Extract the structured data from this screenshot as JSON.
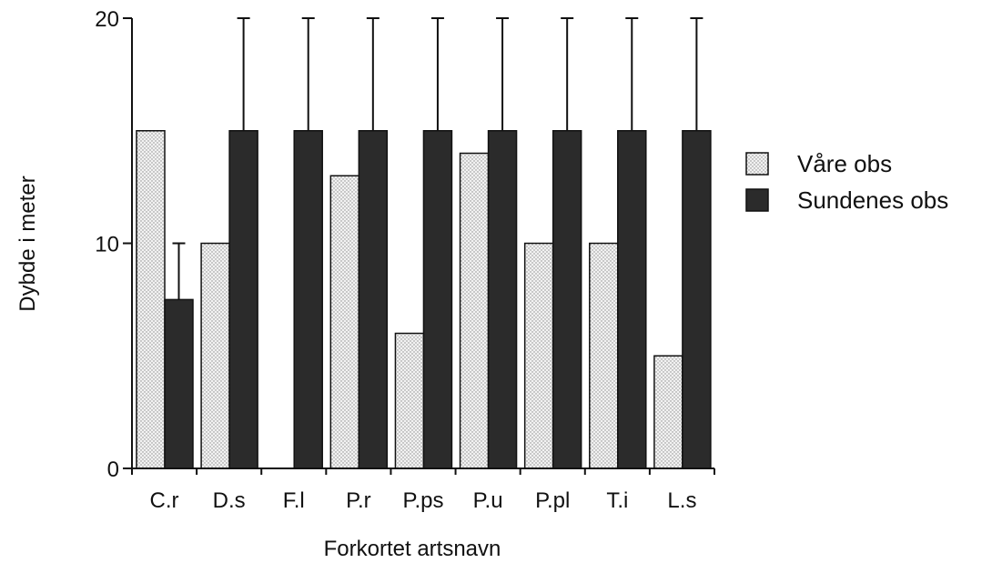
{
  "chart_data": {
    "type": "bar",
    "categories": [
      "C.r",
      "D.s",
      "F.l",
      "P.r",
      "P.ps",
      "P.u",
      "P.pl",
      "T.i",
      "L.s"
    ],
    "series": [
      {
        "name": "Våre obs",
        "values": [
          15,
          10,
          0,
          13,
          6,
          14,
          10,
          10,
          5
        ],
        "error_upper": [
          null,
          null,
          null,
          null,
          null,
          null,
          null,
          null,
          null
        ],
        "color": "#ececec",
        "pattern": "dotted"
      },
      {
        "name": "Sundenes obs",
        "values": [
          7.5,
          15,
          15,
          15,
          15,
          15,
          15,
          15,
          15
        ],
        "error_upper": [
          10,
          20,
          20,
          20,
          20,
          20,
          20,
          20,
          20
        ],
        "color": "#2b2b2b",
        "pattern": "solid"
      }
    ],
    "xlabel": "Forkortet artsnavn",
    "ylabel": "Dybde i meter",
    "ylim": [
      0,
      20
    ],
    "yticks": [
      0,
      10,
      20
    ],
    "grid": false,
    "legend": "right"
  }
}
